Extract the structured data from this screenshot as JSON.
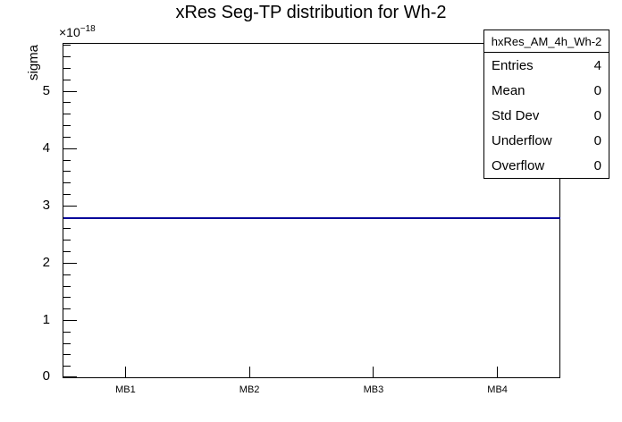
{
  "title": "xRes Seg-TP distribution for Wh-2",
  "y_axis": {
    "label": "sigma",
    "exponent_base": "×10",
    "exponent_power": "−18",
    "tick_labels": [
      "0",
      "1",
      "2",
      "3",
      "4",
      "5"
    ]
  },
  "x_axis": {
    "tick_labels": [
      "MB1",
      "MB2",
      "MB3",
      "MB4"
    ]
  },
  "stats_box": {
    "title": "hxRes_AM_4h_Wh-2",
    "rows": [
      {
        "label": "Entries",
        "value": "4"
      },
      {
        "label": "Mean",
        "value": "0"
      },
      {
        "label": "Std Dev",
        "value": "0"
      },
      {
        "label": "Underflow",
        "value": "0"
      },
      {
        "label": "Overflow",
        "value": "0"
      }
    ]
  },
  "colors": {
    "line": "#000099",
    "frame": "#000000",
    "background": "#ffffff"
  },
  "chart_data": {
    "type": "line",
    "title": "xRes Seg-TP distribution for Wh-2",
    "xlabel": "",
    "ylabel": "sigma",
    "y_unit_scale": "1e-18",
    "categories": [
      "MB1",
      "MB2",
      "MB3",
      "MB4"
    ],
    "series": [
      {
        "name": "hxRes_AM_4h_Wh-2",
        "color": "#000099",
        "values_axis_units": [
          2.78,
          2.78,
          2.78,
          2.78
        ],
        "values": [
          "2.78e-18",
          "2.78e-18",
          "2.78e-18",
          "2.78e-18"
        ]
      }
    ],
    "ylim": [
      0,
      5.82
    ],
    "y_major_step": 1,
    "y_minor_step": 0.2,
    "grid": false,
    "legend_position": "stats-box top-right"
  }
}
